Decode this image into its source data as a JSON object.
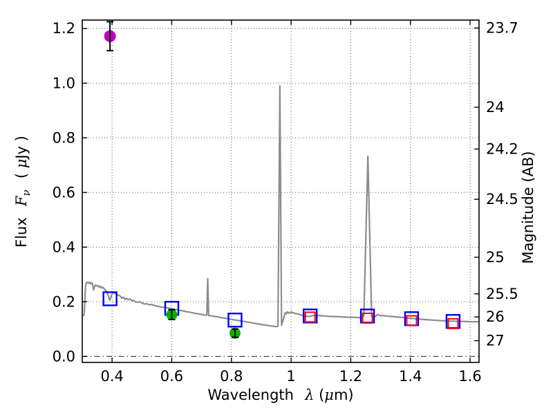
{
  "labels": {
    "xlabel": {
      "word": "Wavelength",
      "symbol": "λ",
      "open": "(",
      "mu": "μ",
      "close": "m)"
    },
    "ylabel_left": {
      "word": "Flux",
      "symbol": "F",
      "sub": "ν",
      "open": "( ",
      "mu": "μ",
      "close": "Jy )"
    },
    "ylabel_right": "Magnitude (AB)"
  },
  "chart_data": {
    "type": "line",
    "title": "",
    "xlabel": "Wavelength λ (μm)",
    "ylabel_left": "Flux Fν ( μJy )",
    "ylabel_right": "Magnitude (AB)",
    "xlim": [
      0.3,
      1.63
    ],
    "ylim": [
      -0.022,
      1.231
    ],
    "grid": true,
    "grid_style": "dotted",
    "x_ticks": [
      0.4,
      0.6,
      0.8,
      1.0,
      1.2,
      1.4,
      1.6
    ],
    "x_tick_labels": [
      "0.4",
      "0.6",
      "0.8",
      "1",
      "1.2",
      "1.4",
      "1.6"
    ],
    "y_ticks_left": [
      0.0,
      0.2,
      0.4,
      0.6,
      0.8,
      1.0,
      1.2
    ],
    "y_tick_labels_left": [
      "0.0",
      "0.2",
      "0.4",
      "0.6",
      "0.8",
      "1.0",
      "1.2"
    ],
    "y_ticks_right": [
      {
        "label": "23.7",
        "flux": 1.202
      },
      {
        "label": "24",
        "flux": 0.912
      },
      {
        "label": "24.2",
        "flux": 0.759
      },
      {
        "label": "24.5",
        "flux": 0.575
      },
      {
        "label": "25",
        "flux": 0.363
      },
      {
        "label": "25.5",
        "flux": 0.229
      },
      {
        "label": "26",
        "flux": 0.1445
      },
      {
        "label": "27",
        "flux": 0.0575
      }
    ],
    "zero_line": {
      "flux": 0.0,
      "style": "dashdot",
      "color": "#333333"
    },
    "colors": {
      "spectrum": "#8c8c8c",
      "model_square": "#0000ff",
      "observed_square": "#ff0000",
      "observed_circle_green": "#00b400",
      "observed_circle_magenta": "#bf00bf",
      "grid": "#555555",
      "frame": "#000000"
    },
    "series": [
      {
        "name": "model-spectrum",
        "type": "line",
        "color": "#8c8c8c",
        "points": [
          [
            0.303,
            0.148
          ],
          [
            0.305,
            0.15
          ],
          [
            0.307,
            0.162
          ],
          [
            0.309,
            0.215
          ],
          [
            0.311,
            0.255
          ],
          [
            0.313,
            0.268
          ],
          [
            0.316,
            0.272
          ],
          [
            0.32,
            0.268
          ],
          [
            0.324,
            0.272
          ],
          [
            0.328,
            0.265
          ],
          [
            0.332,
            0.27
          ],
          [
            0.335,
            0.262
          ],
          [
            0.338,
            0.243
          ],
          [
            0.341,
            0.256
          ],
          [
            0.345,
            0.262
          ],
          [
            0.349,
            0.257
          ],
          [
            0.353,
            0.259
          ],
          [
            0.357,
            0.253
          ],
          [
            0.361,
            0.257
          ],
          [
            0.365,
            0.251
          ],
          [
            0.369,
            0.253
          ],
          [
            0.373,
            0.248
          ],
          [
            0.377,
            0.243
          ],
          [
            0.381,
            0.238
          ],
          [
            0.385,
            0.228
          ],
          [
            0.389,
            0.216
          ],
          [
            0.392,
            0.206
          ],
          [
            0.395,
            0.213
          ],
          [
            0.398,
            0.224
          ],
          [
            0.402,
            0.231
          ],
          [
            0.406,
            0.235
          ],
          [
            0.41,
            0.231
          ],
          [
            0.414,
            0.227
          ],
          [
            0.418,
            0.224
          ],
          [
            0.423,
            0.224
          ],
          [
            0.428,
            0.22
          ],
          [
            0.433,
            0.213
          ],
          [
            0.438,
            0.217
          ],
          [
            0.443,
            0.209
          ],
          [
            0.448,
            0.213
          ],
          [
            0.454,
            0.208
          ],
          [
            0.46,
            0.21
          ],
          [
            0.466,
            0.204
          ],
          [
            0.472,
            0.205
          ],
          [
            0.478,
            0.2
          ],
          [
            0.485,
            0.198
          ],
          [
            0.492,
            0.2
          ],
          [
            0.5,
            0.196
          ],
          [
            0.508,
            0.192
          ],
          [
            0.516,
            0.193
          ],
          [
            0.524,
            0.189
          ],
          [
            0.532,
            0.19
          ],
          [
            0.54,
            0.187
          ],
          [
            0.548,
            0.184
          ],
          [
            0.556,
            0.183
          ],
          [
            0.564,
            0.181
          ],
          [
            0.572,
            0.18
          ],
          [
            0.58,
            0.179
          ],
          [
            0.588,
            0.177
          ],
          [
            0.596,
            0.176
          ],
          [
            0.604,
            0.174
          ],
          [
            0.612,
            0.172
          ],
          [
            0.62,
            0.17
          ],
          [
            0.628,
            0.168
          ],
          [
            0.636,
            0.167
          ],
          [
            0.644,
            0.165
          ],
          [
            0.652,
            0.163
          ],
          [
            0.66,
            0.162
          ],
          [
            0.668,
            0.16
          ],
          [
            0.676,
            0.158
          ],
          [
            0.684,
            0.157
          ],
          [
            0.692,
            0.155
          ],
          [
            0.7,
            0.154
          ],
          [
            0.708,
            0.152
          ],
          [
            0.714,
            0.151
          ],
          [
            0.7175,
            0.152
          ],
          [
            0.7205,
            0.285
          ],
          [
            0.7235,
            0.15
          ],
          [
            0.728,
            0.149
          ],
          [
            0.736,
            0.148
          ],
          [
            0.744,
            0.146
          ],
          [
            0.752,
            0.145
          ],
          [
            0.76,
            0.143
          ],
          [
            0.768,
            0.142
          ],
          [
            0.776,
            0.14
          ],
          [
            0.784,
            0.139
          ],
          [
            0.792,
            0.137
          ],
          [
            0.8,
            0.136
          ],
          [
            0.808,
            0.134
          ],
          [
            0.816,
            0.133
          ],
          [
            0.824,
            0.131
          ],
          [
            0.832,
            0.13
          ],
          [
            0.84,
            0.128
          ],
          [
            0.848,
            0.127
          ],
          [
            0.856,
            0.125
          ],
          [
            0.864,
            0.124
          ],
          [
            0.872,
            0.122
          ],
          [
            0.88,
            0.121
          ],
          [
            0.888,
            0.119
          ],
          [
            0.896,
            0.118
          ],
          [
            0.904,
            0.116
          ],
          [
            0.912,
            0.115
          ],
          [
            0.92,
            0.114
          ],
          [
            0.928,
            0.112
          ],
          [
            0.936,
            0.111
          ],
          [
            0.944,
            0.11
          ],
          [
            0.952,
            0.109
          ],
          [
            0.956,
            0.11
          ],
          [
            0.9625,
            0.99
          ],
          [
            0.968,
            0.114
          ],
          [
            0.971,
            0.124
          ],
          [
            0.976,
            0.143
          ],
          [
            0.98,
            0.16
          ],
          [
            0.984,
            0.156
          ],
          [
            0.988,
            0.163
          ],
          [
            0.993,
            0.158
          ],
          [
            1.0,
            0.162
          ],
          [
            1.006,
            0.16
          ],
          [
            1.012,
            0.158
          ],
          [
            1.02,
            0.156
          ],
          [
            1.028,
            0.154
          ],
          [
            1.036,
            0.151
          ],
          [
            1.044,
            0.149
          ],
          [
            1.052,
            0.147
          ],
          [
            1.06,
            0.146
          ],
          [
            1.068,
            0.148
          ],
          [
            1.076,
            0.15
          ],
          [
            1.084,
            0.151
          ],
          [
            1.092,
            0.15
          ],
          [
            1.1,
            0.149
          ],
          [
            1.11,
            0.148
          ],
          [
            1.12,
            0.147
          ],
          [
            1.135,
            0.146
          ],
          [
            1.15,
            0.146
          ],
          [
            1.165,
            0.145
          ],
          [
            1.18,
            0.144
          ],
          [
            1.195,
            0.143
          ],
          [
            1.21,
            0.143
          ],
          [
            1.225,
            0.142
          ],
          [
            1.238,
            0.142
          ],
          [
            1.244,
            0.148
          ],
          [
            1.2575,
            0.733
          ],
          [
            1.27,
            0.148
          ],
          [
            1.276,
            0.142
          ],
          [
            1.283,
            0.147
          ],
          [
            1.29,
            0.153
          ],
          [
            1.298,
            0.15
          ],
          [
            1.31,
            0.149
          ],
          [
            1.325,
            0.147
          ],
          [
            1.34,
            0.146
          ],
          [
            1.355,
            0.144
          ],
          [
            1.37,
            0.143
          ],
          [
            1.385,
            0.141
          ],
          [
            1.4,
            0.14
          ],
          [
            1.415,
            0.138
          ],
          [
            1.43,
            0.137
          ],
          [
            1.445,
            0.135
          ],
          [
            1.46,
            0.134
          ],
          [
            1.475,
            0.133
          ],
          [
            1.49,
            0.132
          ],
          [
            1.505,
            0.131
          ],
          [
            1.52,
            0.13
          ],
          [
            1.535,
            0.129
          ],
          [
            1.55,
            0.129
          ],
          [
            1.565,
            0.128
          ],
          [
            1.58,
            0.128
          ],
          [
            1.595,
            0.127
          ],
          [
            1.61,
            0.127
          ],
          [
            1.625,
            0.127
          ],
          [
            1.63,
            0.127
          ]
        ]
      },
      {
        "name": "model-photometry-blue-squares",
        "type": "scatter",
        "marker": "open-square",
        "color": "#0000ff",
        "size": 19,
        "points": [
          [
            0.393,
            0.211
          ],
          [
            0.6,
            0.176
          ],
          [
            0.812,
            0.133
          ],
          [
            1.064,
            0.148
          ],
          [
            1.256,
            0.148
          ],
          [
            1.404,
            0.138
          ],
          [
            1.543,
            0.128
          ]
        ]
      },
      {
        "name": "observed-photometry-red-squares",
        "type": "scatter",
        "marker": "open-square",
        "color": "#ff0000",
        "size": 14,
        "points": [
          [
            1.064,
            0.144
          ],
          [
            1.256,
            0.14
          ],
          [
            1.404,
            0.131
          ],
          [
            1.543,
            0.12
          ]
        ]
      },
      {
        "name": "observed-photometry-green-circles",
        "type": "scatter",
        "marker": "filled-circle",
        "color": "#00b400",
        "size": 16,
        "points": [
          [
            0.6,
            0.153
          ],
          [
            0.812,
            0.085
          ]
        ],
        "yerr": [
          0.018,
          0.015
        ]
      },
      {
        "name": "observed-photometry-magenta-circle",
        "type": "scatter",
        "marker": "filled-circle",
        "color": "#bf00bf",
        "size": 17,
        "points": [
          [
            0.393,
            1.172
          ]
        ],
        "yerr": [
          0.053
        ]
      }
    ]
  }
}
